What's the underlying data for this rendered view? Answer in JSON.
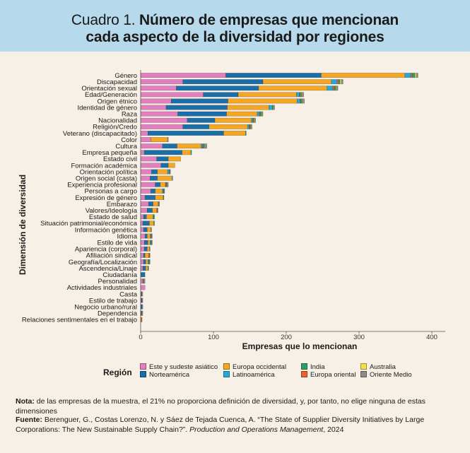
{
  "header": {
    "title_prefix": "Cuadro 1.",
    "title_bold_line1": "Número de empresas que mencionan",
    "title_bold_line2": "cada aspecto de la diversidad por regiones"
  },
  "colors": {
    "title_band": "#b6d9ec",
    "background": "#f7f0e6"
  },
  "chart_data": {
    "type": "bar",
    "orientation": "horizontal",
    "stacked": true,
    "xlabel": "Empresas que lo mencionan",
    "ylabel": "Dimensión de diversidad",
    "xlim": [
      0,
      420
    ],
    "xticks": [
      0,
      100,
      200,
      300,
      400
    ],
    "grid": false,
    "legend_title": "Región",
    "legend_position": "bottom",
    "categories": [
      "Género",
      "Discapacidad",
      "Orientación sexual",
      "Edad/Generación",
      "Origen étnico",
      "Identidad de género",
      "Raza",
      "Nacionalidad",
      "Religión/Credo",
      "Veterano (discapacitado)",
      "Color",
      "Cultura",
      "Empresa pequeña",
      "Estado civil",
      "Formación académica",
      "Orientación política",
      "Origen social (casta)",
      "Experiencia profesional",
      "Personas a cargo",
      "Expresión de género",
      "Embarazo",
      "Valores/Ideología",
      "Estado de salud",
      "Situación patrimonial/económica",
      "Información genética",
      "Idioma",
      "Estilo de vida",
      "Apariencia (corporal)",
      "Afiliación sindical",
      "Geografía/Localización",
      "Ascendencia/Linaje",
      "Ciudadanía",
      "Personalidad",
      "Actividades industriales",
      "Casta",
      "Estilo de trabajo",
      "Negocio urbano/rural",
      "Dependencia",
      "Relaciones sentimentales en el trabajo"
    ],
    "series": [
      {
        "name": "Este y sudeste asiático",
        "color": "#e47fbf",
        "values": [
          117,
          58,
          49,
          86,
          42,
          35,
          51,
          64,
          58,
          10,
          14,
          30,
          5,
          22,
          28,
          15,
          13,
          20,
          14,
          6,
          11,
          9,
          4,
          3,
          4,
          6,
          5,
          5,
          4,
          4,
          3,
          0,
          3,
          6,
          1,
          1,
          0,
          0,
          0
        ]
      },
      {
        "name": "Norteamérica",
        "color": "#1b6fa8",
        "values": [
          131,
          110,
          113,
          48,
          78,
          84,
          67,
          38,
          36,
          104,
          0,
          20,
          52,
          16,
          10,
          8,
          10,
          7,
          6,
          14,
          6,
          7,
          4,
          9,
          5,
          3,
          5,
          4,
          2,
          3,
          4,
          6,
          1,
          0,
          1,
          1,
          2,
          1,
          0
        ]
      },
      {
        "name": "Europa occidental",
        "color": "#f5a623",
        "values": [
          115,
          94,
          94,
          80,
          95,
          57,
          42,
          50,
          53,
          30,
          23,
          33,
          12,
          17,
          9,
          14,
          20,
          7,
          10,
          11,
          7,
          6,
          9,
          6,
          5,
          4,
          3,
          3,
          5,
          3,
          3,
          0,
          1,
          0,
          1,
          0,
          0,
          0,
          1
        ]
      },
      {
        "name": "Latinoamérica",
        "color": "#27a9d6",
        "values": [
          8,
          8,
          8,
          4,
          4,
          5,
          3,
          2,
          2,
          0,
          0,
          2,
          0,
          0,
          0,
          2,
          1,
          0,
          1,
          0,
          1,
          0,
          1,
          0,
          0,
          1,
          1,
          0,
          0,
          1,
          0,
          0,
          0,
          0,
          0,
          0,
          0,
          0,
          0
        ]
      },
      {
        "name": "Europa oriental",
        "color": "#e8652b",
        "values": [
          2,
          2,
          2,
          1,
          1,
          0,
          1,
          1,
          1,
          0,
          0,
          1,
          0,
          0,
          0,
          0,
          0,
          1,
          0,
          0,
          1,
          1,
          0,
          0,
          0,
          1,
          0,
          0,
          1,
          0,
          0,
          0,
          0,
          0,
          0,
          0,
          0,
          1,
          1
        ]
      },
      {
        "name": "India",
        "color": "#2e9e6a",
        "values": [
          4,
          2,
          2,
          2,
          2,
          1,
          2,
          1,
          1,
          1,
          0,
          2,
          1,
          0,
          0,
          1,
          0,
          1,
          1,
          1,
          0,
          0,
          1,
          1,
          1,
          0,
          1,
          0,
          0,
          1,
          1,
          0,
          0,
          0,
          0,
          0,
          0,
          0,
          0
        ]
      },
      {
        "name": "Australia",
        "color": "#f2e14c",
        "values": [
          2,
          2,
          1,
          1,
          1,
          1,
          1,
          1,
          1,
          0,
          0,
          1,
          0,
          0,
          0,
          0,
          0,
          0,
          0,
          0,
          0,
          0,
          0,
          0,
          0,
          0,
          0,
          0,
          0,
          0,
          0,
          0,
          0,
          0,
          0,
          0,
          0,
          0,
          0
        ]
      },
      {
        "name": "Oriente Medio",
        "color": "#8c8c8c",
        "values": [
          2,
          2,
          2,
          2,
          2,
          1,
          1,
          1,
          1,
          0,
          1,
          2,
          0,
          0,
          0,
          1,
          0,
          2,
          1,
          0,
          0,
          1,
          0,
          0,
          0,
          1,
          1,
          1,
          1,
          1,
          0,
          0,
          1,
          0,
          0,
          1,
          1,
          1,
          0
        ]
      }
    ]
  },
  "legend_layout_order": [
    "Este y sudeste asiático",
    "Norteamérica",
    "Europa occidental",
    "Latinoamérica",
    "India",
    "Europa oriental",
    "Australia",
    "Oriente Medio"
  ],
  "note": {
    "label": "Nota:",
    "text": " de las empresas de la muestra, el 21% no proporciona definición de diversidad, y, por tanto, no elige ninguna de estas dimensiones"
  },
  "source": {
    "label": "Fuente:",
    "text_main": " Berenguer, G., Costas Lorenzo, N. y Sáez de Tejada Cuenca, A. “The State of Supplier Diversity Initiatives by Large Corporations: The New Sustainable Supply Chain?”. ",
    "journal": "Production and Operations Management",
    "text_end": ", 2024"
  }
}
